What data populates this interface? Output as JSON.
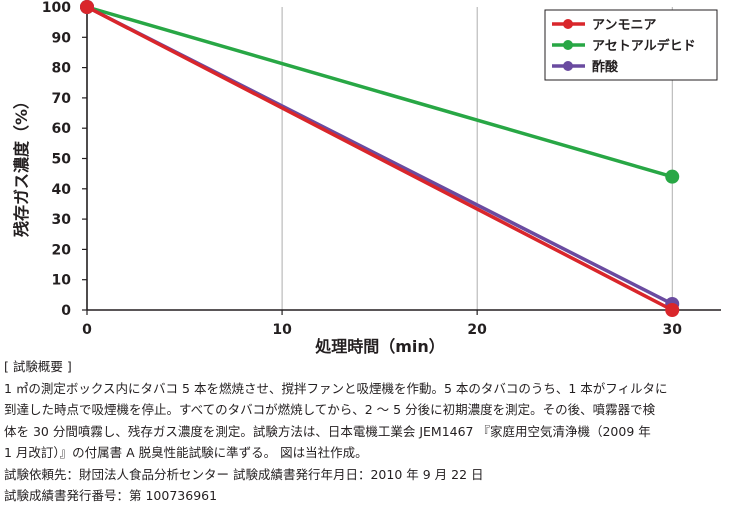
{
  "chart_data": {
    "type": "line",
    "xlabel": "処理時間（min）",
    "ylabel": "残存ガス濃度（%）",
    "xlim": [
      0,
      32.5
    ],
    "ylim": [
      0,
      100
    ],
    "xticks": [
      0,
      10,
      20,
      30
    ],
    "yticks": [
      0,
      10,
      20,
      30,
      40,
      50,
      60,
      70,
      80,
      90,
      100
    ],
    "grid": "vertical",
    "legend_position": "top-right",
    "series": [
      {
        "name": "アンモニア",
        "color": "#d9262b",
        "x": [
          0,
          30
        ],
        "y": [
          100,
          0
        ]
      },
      {
        "name": "アセトアルデヒド",
        "color": "#28a745",
        "x": [
          0,
          30
        ],
        "y": [
          100,
          44
        ]
      },
      {
        "name": "酢酸",
        "color": "#6a4ba0",
        "x": [
          0,
          30
        ],
        "y": [
          100,
          2
        ]
      }
    ]
  },
  "notes": {
    "heading": "[ 試験概要 ]",
    "lines": [
      "1 ㎥の測定ボックス内にタバコ 5 本を燃焼させ、撹拌ファンと吸煙機を作動。5 本のタバコのうち、1 本がフィルタに",
      "到達した時点で吸煙機を停止。すべてのタバコが燃焼してから、2 ～ 5 分後に初期濃度を測定。その後、噴霧器で検",
      "体を 30 分間噴霧し、残存ガス濃度を測定。試験方法は、日本電機工業会 JEM1467 『家庭用空気清浄機（2009 年",
      "1 月改訂）』の付属書 A 脱臭性能試験に準ずる。 図は当社作成。"
    ],
    "client": "試験依頼先：財団法人食品分析センター 試験成績書発行年月日：2010 年 9 月 22 日",
    "report_no": "試験成績書発行番号：第 100736961"
  }
}
